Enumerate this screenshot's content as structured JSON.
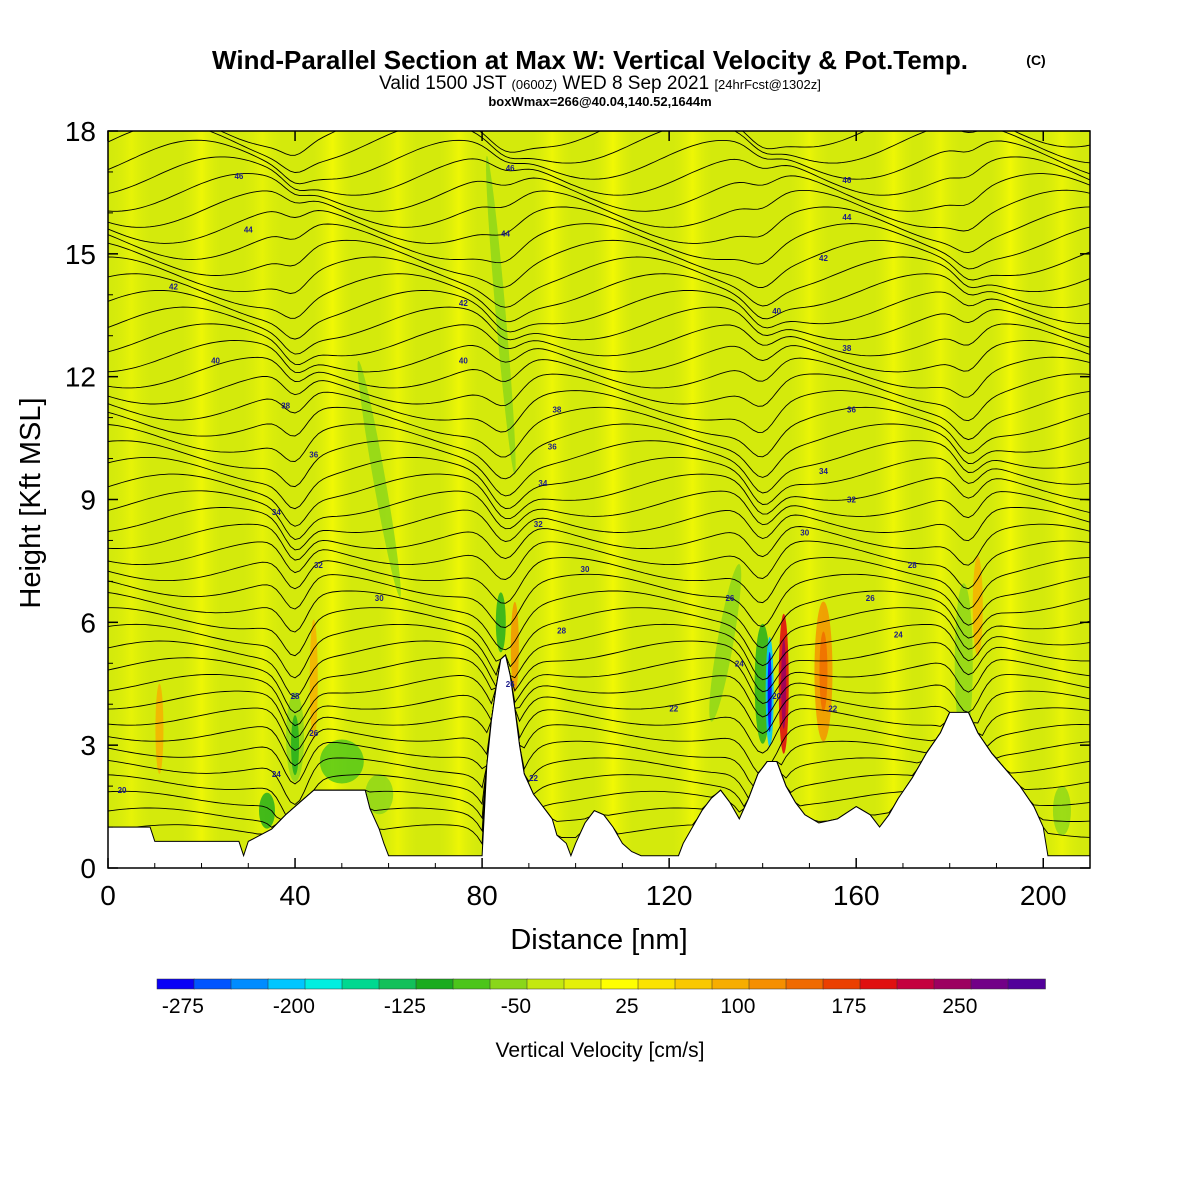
{
  "header": {
    "title": "Wind-Parallel Section at Max W: Vertical Velocity & Pot.Temp.",
    "title_mark": "(C)",
    "valid_prefix": "Valid 1500 JST",
    "valid_zulu": "(0600Z)",
    "valid_date": "WED 8 Sep 2021",
    "forecast": "[24hrFcst@1302z]",
    "box_info": "boxWmax=266@40.04,140.52,1644m"
  },
  "chart_data": {
    "type": "heatmap",
    "xlabel": "Distance [nm]",
    "ylabel": "Height [Kft MSL]",
    "xlim": [
      0,
      210
    ],
    "ylim": [
      0,
      18
    ],
    "x_ticks": [
      0,
      40,
      80,
      120,
      160,
      200
    ],
    "y_ticks": [
      0,
      3,
      6,
      9,
      12,
      15,
      18
    ],
    "colorbar": {
      "title": "Vertical Velocity [cm/s]",
      "tick_labels": [
        "-275",
        "-200",
        "-125",
        "-50",
        "25",
        "100",
        "175",
        "250"
      ],
      "colors": [
        "#0a00f5",
        "#0055ff",
        "#008cff",
        "#00c6ff",
        "#00eee0",
        "#00d890",
        "#12c05a",
        "#1aab1e",
        "#4cc51a",
        "#8ad61a",
        "#c4e810",
        "#e4f00a",
        "#ffff00",
        "#fbe300",
        "#f9c800",
        "#f7ad00",
        "#f58f00",
        "#f06a00",
        "#eb4000",
        "#e01010",
        "#c4003e",
        "#9c0060",
        "#720087",
        "#52009a"
      ]
    },
    "terrain_profile": [
      [
        0,
        1.0
      ],
      [
        9,
        1.0
      ],
      [
        10,
        0.65
      ],
      [
        28,
        0.65
      ],
      [
        29,
        0.3
      ],
      [
        30,
        0.65
      ],
      [
        35,
        0.95
      ],
      [
        38,
        1.3
      ],
      [
        41,
        1.6
      ],
      [
        44,
        1.9
      ],
      [
        55,
        1.9
      ],
      [
        56,
        1.45
      ],
      [
        58,
        0.95
      ],
      [
        59,
        0.6
      ],
      [
        60,
        0.3
      ],
      [
        80,
        0.3
      ],
      [
        81,
        2.5
      ],
      [
        82,
        3.6
      ],
      [
        83,
        4.4
      ],
      [
        84,
        5.1
      ],
      [
        85,
        5.2
      ],
      [
        86,
        4.7
      ],
      [
        87,
        3.9
      ],
      [
        88,
        3.0
      ],
      [
        89,
        2.3
      ],
      [
        91,
        1.8
      ],
      [
        93,
        1.5
      ],
      [
        95,
        1.2
      ],
      [
        96,
        0.8
      ],
      [
        98,
        0.6
      ],
      [
        99,
        0.3
      ],
      [
        100,
        0.6
      ],
      [
        102,
        1.1
      ],
      [
        104,
        1.4
      ],
      [
        106,
        1.3
      ],
      [
        108,
        1.0
      ],
      [
        110,
        0.6
      ],
      [
        112,
        0.4
      ],
      [
        114,
        0.3
      ],
      [
        122,
        0.3
      ],
      [
        123,
        0.6
      ],
      [
        125,
        1.0
      ],
      [
        127,
        1.4
      ],
      [
        129,
        1.7
      ],
      [
        131,
        1.9
      ],
      [
        133,
        1.6
      ],
      [
        135,
        1.2
      ],
      [
        137,
        1.7
      ],
      [
        139,
        2.3
      ],
      [
        141,
        2.6
      ],
      [
        143,
        2.6
      ],
      [
        145,
        2.0
      ],
      [
        147,
        1.6
      ],
      [
        149,
        1.3
      ],
      [
        152,
        1.1
      ],
      [
        156,
        1.2
      ],
      [
        160,
        1.5
      ],
      [
        163,
        1.3
      ],
      [
        165,
        1.0
      ],
      [
        167,
        1.3
      ],
      [
        169,
        1.7
      ],
      [
        172,
        2.2
      ],
      [
        175,
        2.8
      ],
      [
        178,
        3.3
      ],
      [
        180,
        3.8
      ],
      [
        184,
        3.8
      ],
      [
        186,
        3.3
      ],
      [
        189,
        2.8
      ],
      [
        192,
        2.4
      ],
      [
        195,
        2.0
      ],
      [
        198,
        1.5
      ],
      [
        200,
        1.0
      ],
      [
        201,
        0.3
      ],
      [
        210,
        0.3
      ]
    ],
    "theta_contour_labels": [
      {
        "text": "46",
        "x": 28,
        "y": 16.9
      },
      {
        "text": "44",
        "x": 30,
        "y": 15.6
      },
      {
        "text": "42",
        "x": 14,
        "y": 14.2
      },
      {
        "text": "40",
        "x": 23,
        "y": 12.4
      },
      {
        "text": "38",
        "x": 38,
        "y": 11.3
      },
      {
        "text": "36",
        "x": 44,
        "y": 10.1
      },
      {
        "text": "34",
        "x": 36,
        "y": 8.7
      },
      {
        "text": "32",
        "x": 45,
        "y": 7.4
      },
      {
        "text": "30",
        "x": 58,
        "y": 6.6
      },
      {
        "text": "28",
        "x": 40,
        "y": 4.2
      },
      {
        "text": "26",
        "x": 44,
        "y": 3.3
      },
      {
        "text": "24",
        "x": 36,
        "y": 2.3
      },
      {
        "text": "20",
        "x": 3,
        "y": 1.9
      },
      {
        "text": "46",
        "x": 86,
        "y": 17.1
      },
      {
        "text": "44",
        "x": 85,
        "y": 15.5
      },
      {
        "text": "42",
        "x": 76,
        "y": 13.8
      },
      {
        "text": "40",
        "x": 76,
        "y": 12.4
      },
      {
        "text": "38",
        "x": 96,
        "y": 11.2
      },
      {
        "text": "36",
        "x": 95,
        "y": 10.3
      },
      {
        "text": "34",
        "x": 93,
        "y": 9.4
      },
      {
        "text": "32",
        "x": 92,
        "y": 8.4
      },
      {
        "text": "30",
        "x": 102,
        "y": 7.3
      },
      {
        "text": "28",
        "x": 97,
        "y": 5.8
      },
      {
        "text": "26",
        "x": 86,
        "y": 4.5
      },
      {
        "text": "22",
        "x": 91,
        "y": 2.2
      },
      {
        "text": "46",
        "x": 158,
        "y": 16.8
      },
      {
        "text": "44",
        "x": 158,
        "y": 15.9
      },
      {
        "text": "42",
        "x": 153,
        "y": 14.9
      },
      {
        "text": "40",
        "x": 143,
        "y": 13.6
      },
      {
        "text": "38",
        "x": 158,
        "y": 12.7
      },
      {
        "text": "36",
        "x": 159,
        "y": 11.2
      },
      {
        "text": "34",
        "x": 153,
        "y": 9.7
      },
      {
        "text": "32",
        "x": 159,
        "y": 9.0
      },
      {
        "text": "30",
        "x": 149,
        "y": 8.2
      },
      {
        "text": "28",
        "x": 172,
        "y": 7.4
      },
      {
        "text": "26",
        "x": 163,
        "y": 6.6
      },
      {
        "text": "24",
        "x": 169,
        "y": 5.7
      },
      {
        "text": "22",
        "x": 121,
        "y": 3.9
      },
      {
        "text": "22",
        "x": 155,
        "y": 3.9
      },
      {
        "text": "26",
        "x": 133,
        "y": 6.6
      },
      {
        "text": "24",
        "x": 135,
        "y": 5.0
      },
      {
        "text": "20",
        "x": 143,
        "y": 4.2
      }
    ]
  }
}
